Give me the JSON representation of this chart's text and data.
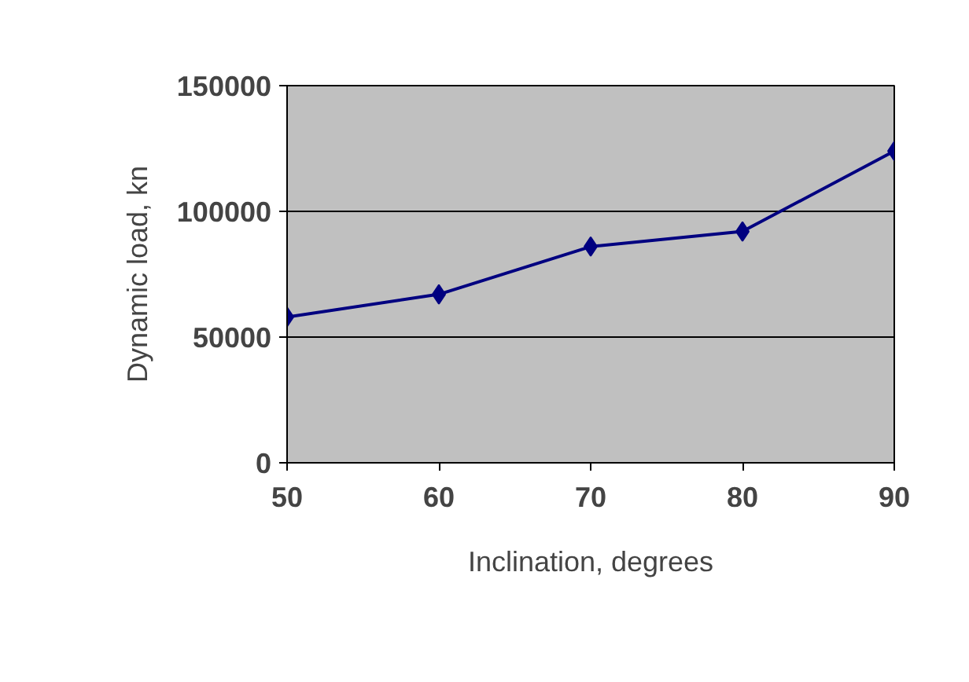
{
  "chart_data": {
    "type": "line",
    "xlabel": "Inclination, degrees",
    "ylabel": "Dynamic load, kn",
    "x": [
      50,
      60,
      70,
      80,
      90
    ],
    "series": [
      {
        "color": "#000080",
        "values": [
          58000,
          67000,
          86000,
          92000,
          124000
        ]
      }
    ],
    "xlim": [
      50,
      90
    ],
    "xticks": [
      50,
      60,
      70,
      80,
      90
    ],
    "ylim": [
      0,
      150000
    ],
    "yticks": [
      0,
      50000,
      100000,
      150000
    ],
    "grid": "y",
    "marker": "diamond",
    "line_style": "solid"
  }
}
